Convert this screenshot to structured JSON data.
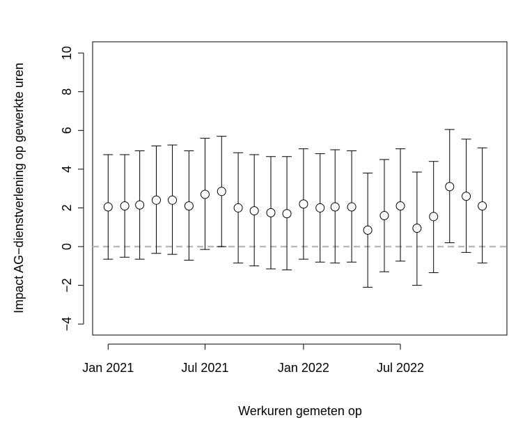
{
  "chart_data": {
    "type": "errorbar",
    "xlabel": "Werkuren gemeten op",
    "ylabel": "Impact AG−dienstverlening op gewerkte uren",
    "x": [
      "2021-01",
      "2021-02",
      "2021-03",
      "2021-04",
      "2021-05",
      "2021-06",
      "2021-07",
      "2021-08",
      "2021-09",
      "2021-10",
      "2021-11",
      "2021-12",
      "2022-01",
      "2022-02",
      "2022-03",
      "2022-04",
      "2022-05",
      "2022-06",
      "2022-07",
      "2022-08",
      "2022-09",
      "2022-10",
      "2022-11",
      "2022-12"
    ],
    "series": [
      {
        "color": "#000000",
        "values": [
          2.05,
          2.1,
          2.15,
          2.4,
          2.4,
          2.1,
          2.7,
          2.85,
          2.0,
          1.85,
          1.75,
          1.7,
          2.2,
          2.0,
          2.05,
          2.05,
          0.85,
          1.6,
          2.1,
          0.95,
          1.55,
          3.1,
          2.6,
          2.1
        ],
        "lower": [
          -0.65,
          -0.55,
          -0.65,
          -0.35,
          -0.4,
          -0.7,
          -0.15,
          0.0,
          -0.85,
          -1.0,
          -1.15,
          -1.2,
          -0.65,
          -0.8,
          -0.85,
          -0.8,
          -2.1,
          -1.3,
          -0.75,
          -2.0,
          -1.35,
          0.2,
          -0.3,
          -0.85
        ],
        "upper": [
          4.75,
          4.75,
          4.95,
          5.2,
          5.25,
          4.95,
          5.6,
          5.7,
          4.85,
          4.75,
          4.65,
          4.65,
          5.05,
          4.8,
          5.0,
          4.95,
          3.8,
          4.5,
          5.05,
          3.85,
          4.4,
          6.05,
          5.55,
          5.1
        ]
      }
    ],
    "reference_line": 0,
    "reference_color": "#bbbbbb",
    "xlim": [
      "2020-12-03",
      "2023-01-16"
    ],
    "xticks": [
      {
        "value": "2021-01",
        "label": "Jan 2021"
      },
      {
        "value": "2021-07",
        "label": "Jul 2021"
      },
      {
        "value": "2022-01",
        "label": "Jan 2022"
      },
      {
        "value": "2022-07",
        "label": "Jul 2022"
      }
    ],
    "ylim": [
      -4.57,
      10.58
    ],
    "yticks": [
      {
        "value": -4,
        "label": "−4"
      },
      {
        "value": -2,
        "label": "−2"
      },
      0,
      2,
      4,
      6,
      8,
      10
    ]
  }
}
